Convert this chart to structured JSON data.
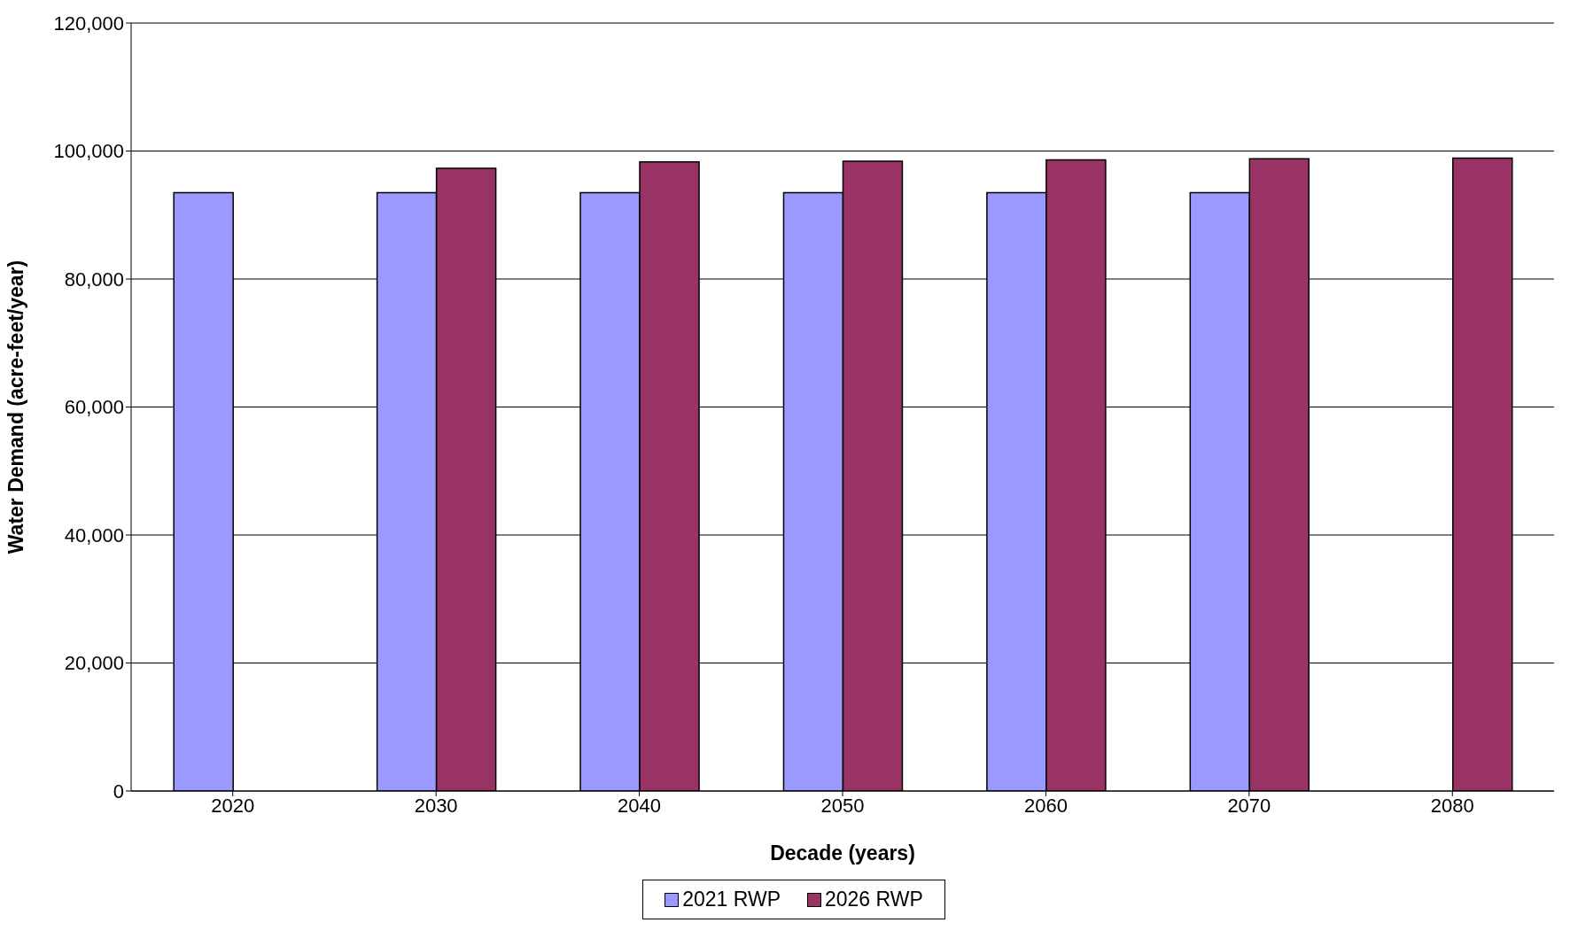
{
  "chart_data": {
    "type": "bar",
    "xlabel": "Decade (years)",
    "ylabel": "Water Demand (acre-feet/year)",
    "categories": [
      "2020",
      "2030",
      "2040",
      "2050",
      "2060",
      "2070",
      "2080"
    ],
    "series": [
      {
        "name": "2021 RWP",
        "color": "#9999ff",
        "values": [
          93500,
          93500,
          93500,
          93500,
          93500,
          93500,
          null
        ]
      },
      {
        "name": "2026 RWP",
        "color": "#993366",
        "values": [
          null,
          97300,
          98300,
          98400,
          98600,
          98800,
          98900
        ]
      }
    ],
    "ylim": [
      0,
      120000
    ],
    "yticks": [
      0,
      {
        "value": 20000,
        "label": "20,000"
      },
      {
        "value": 40000,
        "label": "40,000"
      },
      {
        "value": 60000,
        "label": "60,000"
      },
      {
        "value": 80000,
        "label": "80,000"
      },
      {
        "value": 100000,
        "label": "100,000"
      },
      {
        "value": 120000,
        "label": "120,000"
      }
    ],
    "grid": "y",
    "legend": "bottom"
  }
}
